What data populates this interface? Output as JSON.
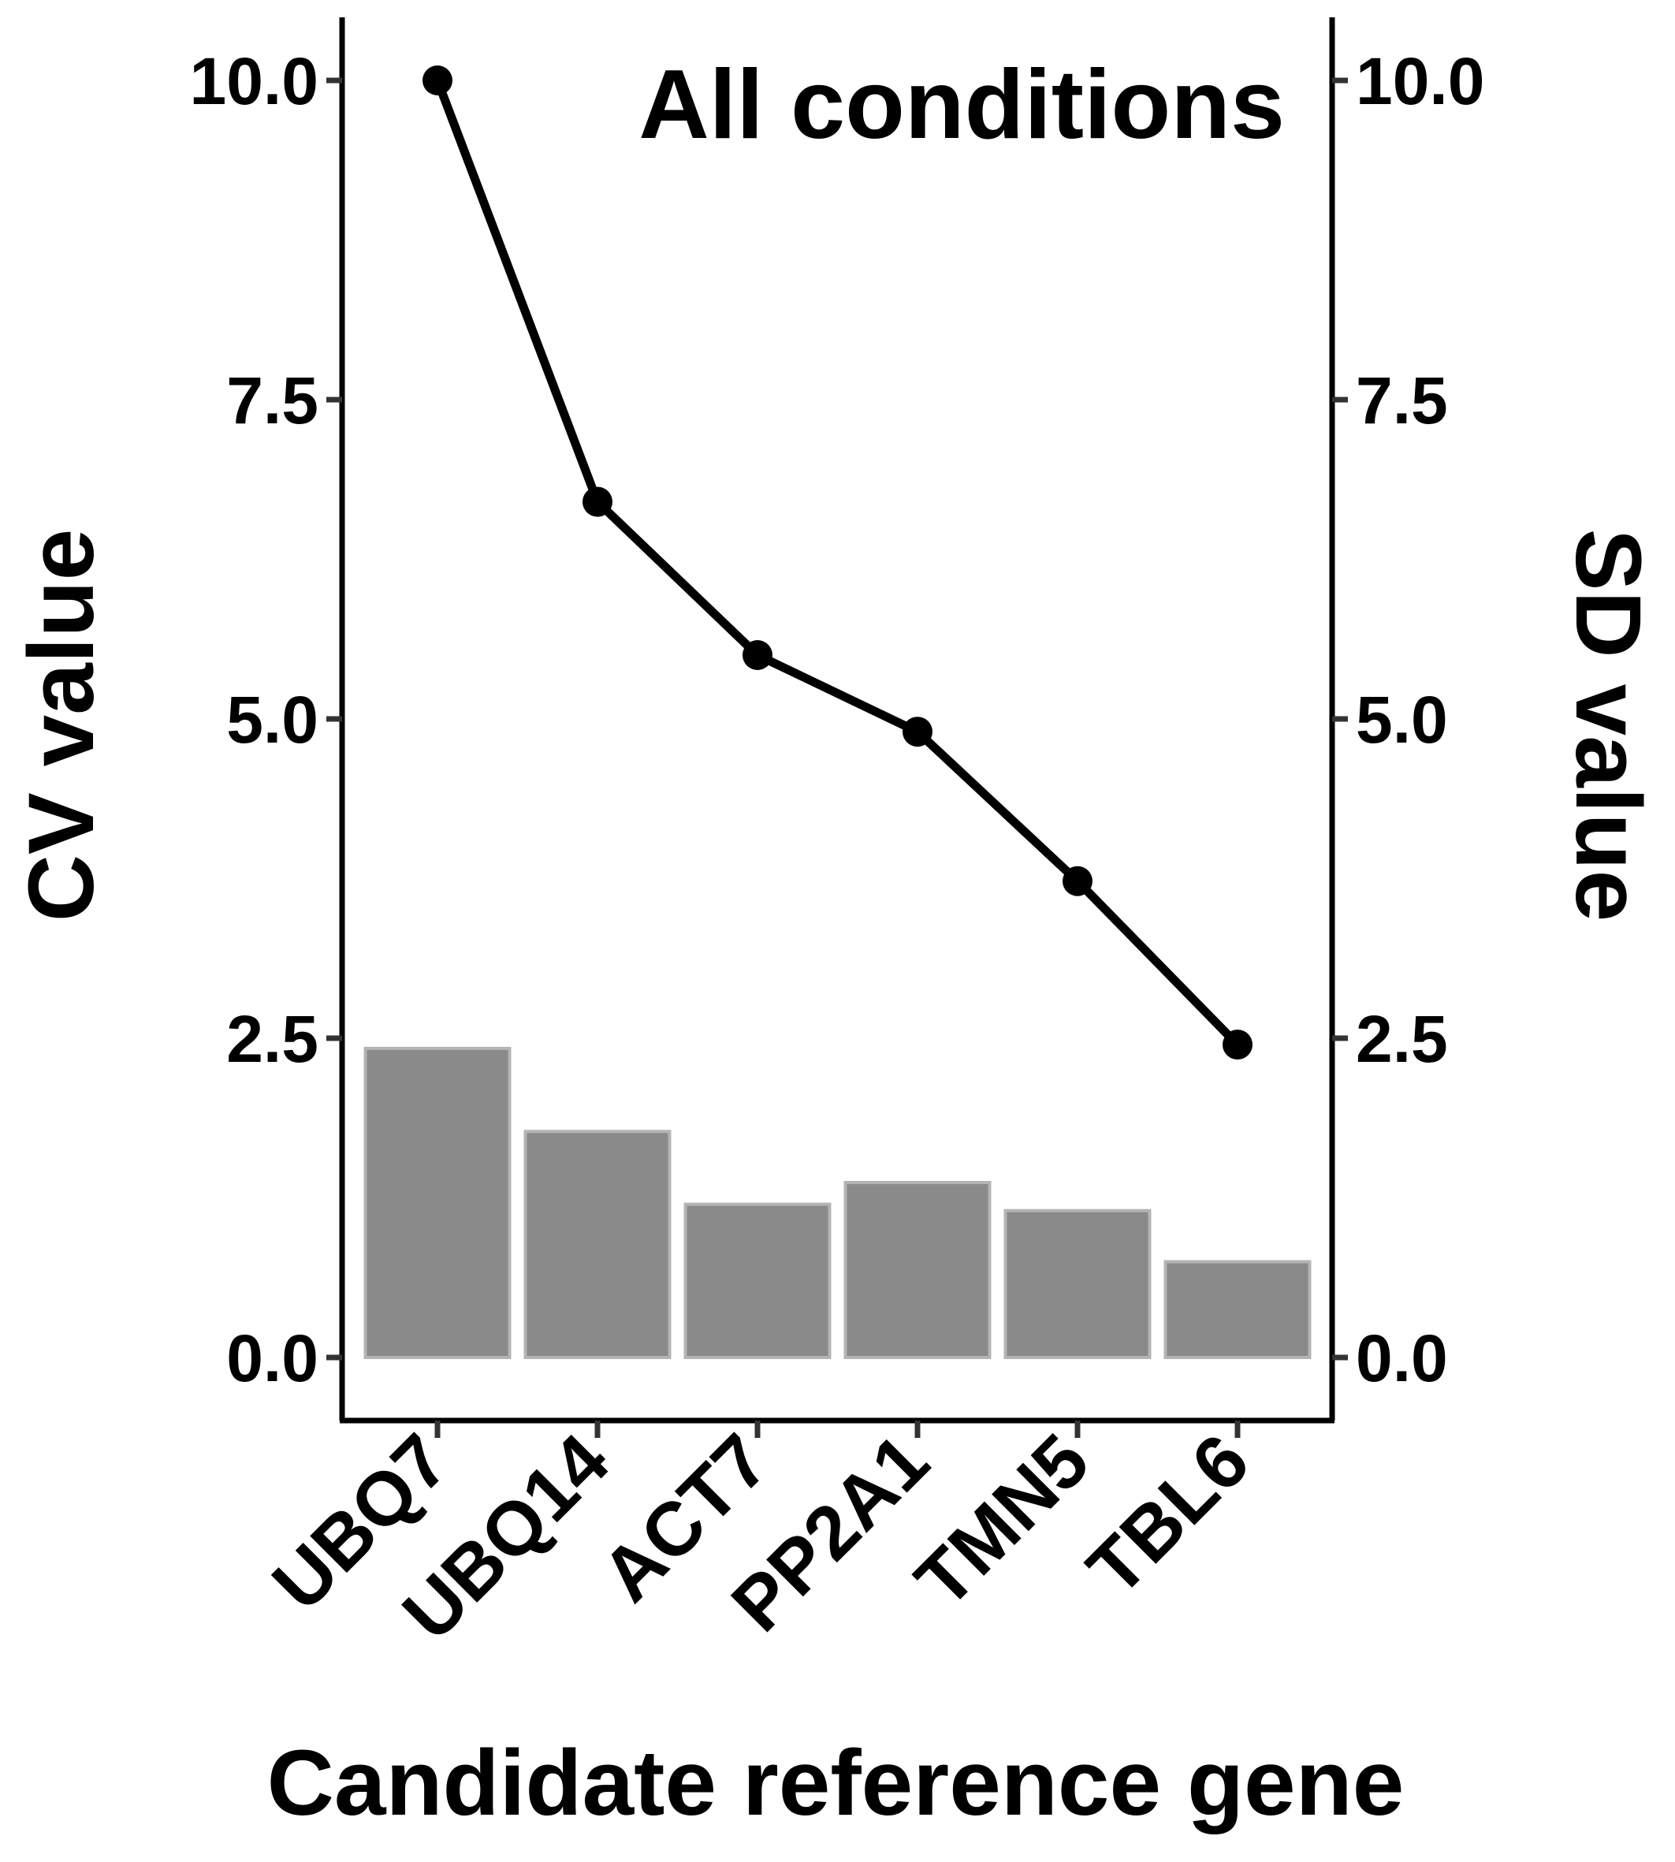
{
  "chart_data": {
    "type": "bar+line",
    "title": "All conditions",
    "xlabel": "Candidate reference gene",
    "ylabel_left": "CV value",
    "ylabel_right": "SD value",
    "categories": [
      "UBQ7",
      "UBQ14",
      "ACT7",
      "PP2A1",
      "TMN5",
      "TBL6"
    ],
    "series": [
      {
        "axis": "left",
        "type": "bar",
        "values": [
          2.42,
          1.77,
          1.2,
          1.37,
          1.15,
          0.75
        ]
      },
      {
        "axis": "right",
        "type": "line",
        "values": [
          10.0,
          6.7,
          5.5,
          4.9,
          3.73,
          2.45
        ]
      }
    ],
    "ylim": [
      -0.5,
      10.5
    ],
    "yticks": [
      "0.0",
      "2.5",
      "5.0",
      "7.5",
      "10.0"
    ],
    "ytick_values": [
      0,
      2.5,
      5.0,
      7.5,
      10.0
    ],
    "grid": false,
    "colors": {
      "bar_fill": "#8a8a8a",
      "bar_edge": "#b4b4b4",
      "line": "#000000",
      "axis": "#000000",
      "tick": "#333333"
    }
  }
}
